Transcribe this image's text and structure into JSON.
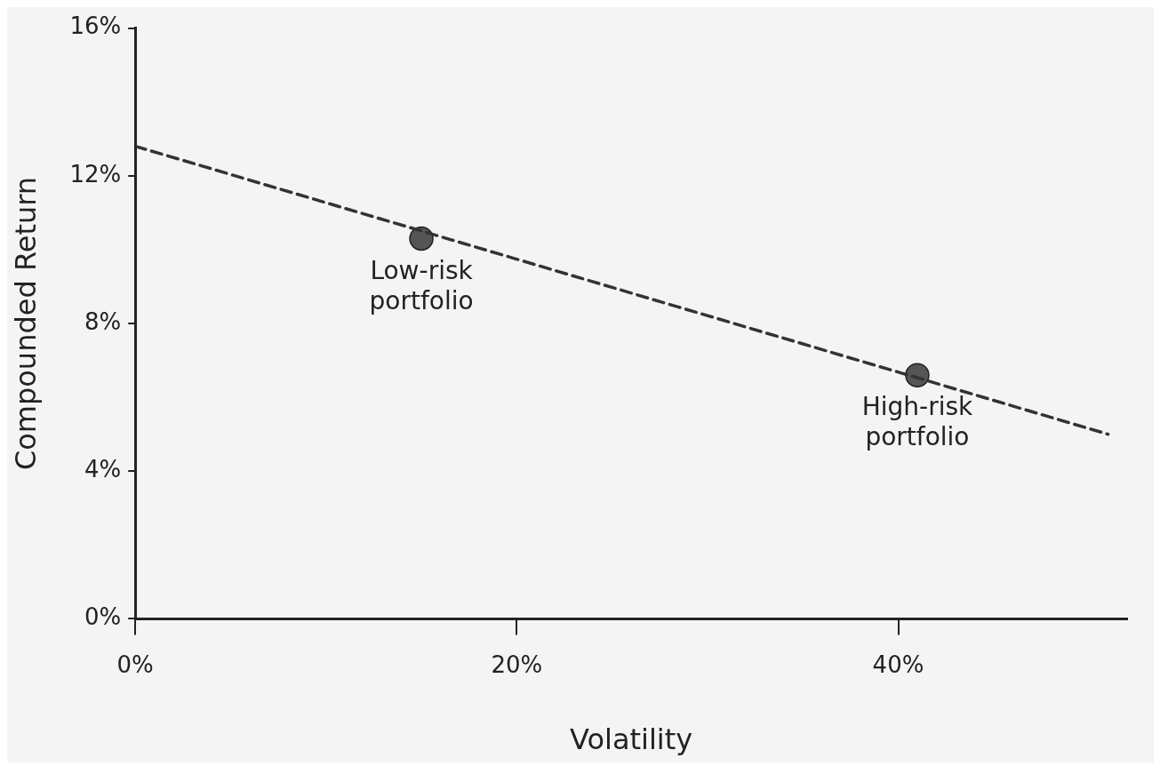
{
  "chart_data": {
    "type": "scatter",
    "xlabel": "Volatility",
    "ylabel": "Compounded Return",
    "xlim": [
      0,
      52
    ],
    "xticks": [
      {
        "value": 0,
        "label": "0%"
      },
      {
        "value": 20,
        "label": "20%"
      },
      {
        "value": 40,
        "label": "40%"
      }
    ],
    "ylim": [
      0,
      16
    ],
    "yticks": [
      {
        "value": 0,
        "label": "0%"
      },
      {
        "value": 4,
        "label": "4%"
      },
      {
        "value": 8,
        "label": "8%"
      },
      {
        "value": 12,
        "label": "12%"
      },
      {
        "value": 16,
        "label": "16%"
      }
    ],
    "grid": false,
    "legend": false,
    "series": [
      {
        "type": "line",
        "color": "#333333",
        "line_style": "dashed",
        "marker": "none",
        "x": [
          0,
          51
        ],
        "values": [
          12.8,
          5
        ]
      },
      {
        "type": "scatter",
        "color": "#555555",
        "marker": "circle",
        "x": [
          15,
          41
        ],
        "values": [
          10.3,
          6.6
        ]
      }
    ],
    "annotations": [
      {
        "text": "Low-risk portfolio",
        "x": 15,
        "y": 10.3
      },
      {
        "text": "High-risk portfolio",
        "x": 41,
        "y": 6.6
      }
    ]
  }
}
